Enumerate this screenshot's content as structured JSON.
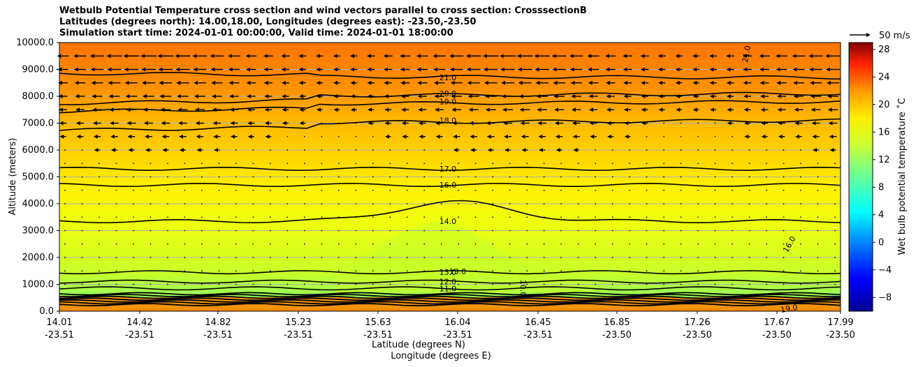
{
  "chart_data": {
    "type": "heatmap",
    "title_lines": [
      "Wetbulb Potential Temperature cross section and wind vectors parallel to cross section: CrosssectionB",
      "Latitudes (degrees north): 14.00,18.00, Longitudes (degrees east): -23.50,-23.50",
      "Simulation start time: 2024-01-01 00:00:00, Valid time: 2024-01-01 18:00:00"
    ],
    "ylabel": "Altitude (meters)",
    "xlabel_1": "Latitude (degrees N)",
    "xlabel_2": "Longitude (degrees E)",
    "ylim": [
      0,
      10000
    ],
    "y_ticks": [
      "0.0",
      "1000.0",
      "2000.0",
      "3000.0",
      "4000.0",
      "5000.0",
      "6000.0",
      "7000.0",
      "8000.0",
      "9000.0",
      "10000.0"
    ],
    "x_ticks": [
      {
        "lat": "14.01",
        "lon": "-23.51"
      },
      {
        "lat": "14.42",
        "lon": "-23.51"
      },
      {
        "lat": "14.82",
        "lon": "-23.51"
      },
      {
        "lat": "15.23",
        "lon": "-23.51"
      },
      {
        "lat": "15.63",
        "lon": "-23.51"
      },
      {
        "lat": "16.04",
        "lon": "-23.51"
      },
      {
        "lat": "16.45",
        "lon": "-23.51"
      },
      {
        "lat": "16.85",
        "lon": "-23.50"
      },
      {
        "lat": "17.26",
        "lon": "-23.50"
      },
      {
        "lat": "17.67",
        "lon": "-23.50"
      },
      {
        "lat": "17.99",
        "lon": "-23.50"
      }
    ],
    "grid": "horizontal",
    "colorbar": {
      "label": "Wet bulb potential temperature ˚C",
      "range": [
        -10,
        29
      ],
      "ticks": [
        "−8",
        "−4",
        "0",
        "4",
        "8",
        "12",
        "16",
        "20",
        "24",
        "28"
      ],
      "tick_values": [
        -8,
        -4,
        0,
        4,
        8,
        12,
        16,
        20,
        24,
        28
      ],
      "colormap": "jet"
    },
    "vector_key": "50 m/s",
    "contour_levels": [
      {
        "value": 21,
        "label": "21.0",
        "altitude": 8700
      },
      {
        "value": 20,
        "label": "20.0",
        "altitude": 8100
      },
      {
        "value": 19,
        "label": "19.0",
        "altitude": 7800
      },
      {
        "value": 18,
        "label": "18.0",
        "altitude": 7100
      },
      {
        "value": 17,
        "label": "17.0",
        "altitude": 5300
      },
      {
        "value": 16,
        "label": "16.0",
        "altitude": 4700
      },
      {
        "value": 14,
        "label": "14.0",
        "altitude": 3350
      },
      {
        "value": 13,
        "label": "13.0",
        "altitude": 1450
      },
      {
        "value": 12,
        "label": "12.0",
        "altitude": 1100
      },
      {
        "value": 11,
        "label": "11.0",
        "altitude": 850
      }
    ],
    "other_labels": [
      "13.0",
      "10.0",
      "19.0",
      "21.0",
      "16.0"
    ]
  }
}
